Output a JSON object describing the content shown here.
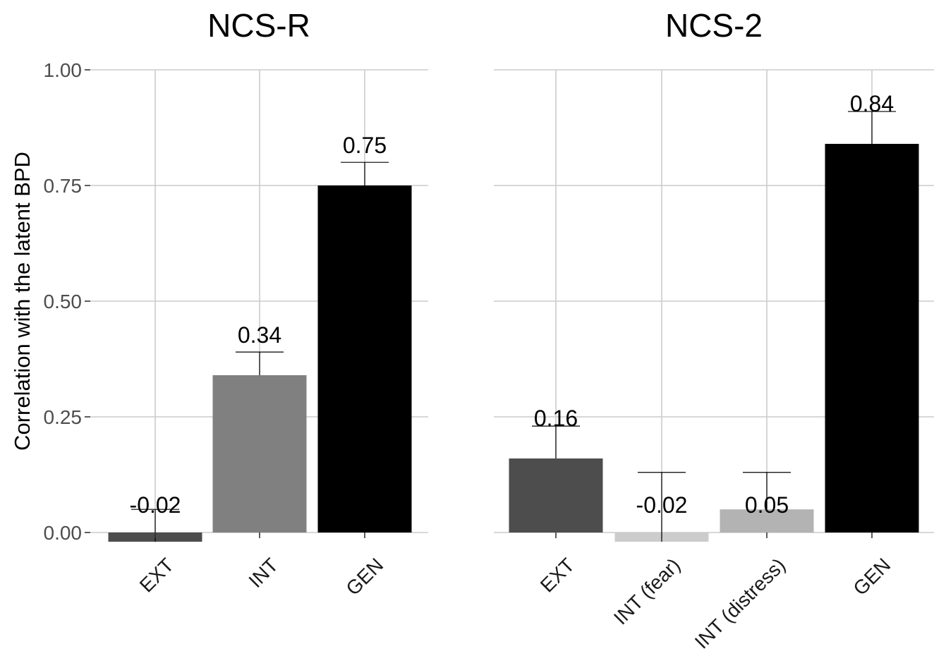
{
  "chart_data": [
    {
      "type": "bar",
      "title": "NCS-R",
      "ylabel": "Correlation with the latent BPD",
      "ylim": [
        0,
        1
      ],
      "yticks": [
        "0.00",
        "0.25",
        "0.50",
        "0.75",
        "1.00"
      ],
      "categories": [
        "EXT",
        "INT",
        "GEN"
      ],
      "values": [
        -0.02,
        0.34,
        0.75
      ],
      "labels": [
        "-0.02",
        "0.34",
        "0.75"
      ],
      "error_upper": [
        0.05,
        0.39,
        0.8
      ],
      "colors": [
        "#4d4d4d",
        "#808080",
        "#000000"
      ]
    },
    {
      "type": "bar",
      "title": "NCS-2",
      "ylim": [
        0,
        1
      ],
      "categories": [
        "EXT",
        "INT (fear)",
        "INT (distress)",
        "GEN"
      ],
      "values": [
        0.16,
        -0.02,
        0.05,
        0.84
      ],
      "labels": [
        "0.16",
        "-0.02",
        "0.05",
        "0.84"
      ],
      "error_upper": [
        0.23,
        0.13,
        0.13,
        0.91
      ],
      "colors": [
        "#4d4d4d",
        "#cccccc",
        "#b3b3b3",
        "#000000"
      ]
    }
  ]
}
